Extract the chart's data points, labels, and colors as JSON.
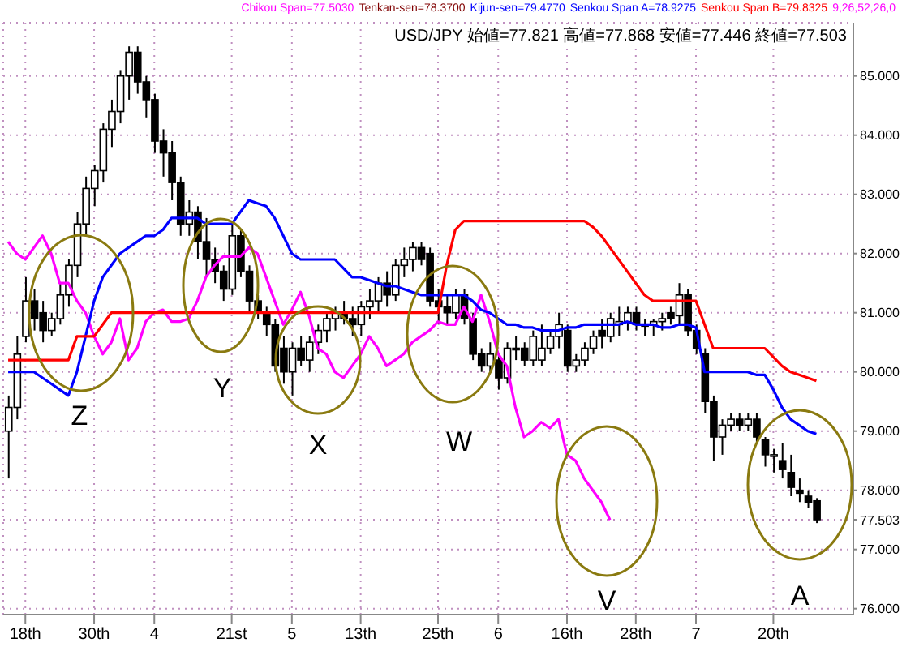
{
  "chart_data": {
    "type": "candlestick",
    "categories": [
      null,
      null,
      "18th",
      null,
      null,
      null,
      null,
      null,
      null,
      null,
      "30th",
      null,
      null,
      null,
      null,
      null,
      null,
      "4",
      null,
      null,
      null,
      null,
      null,
      null,
      null,
      null,
      "21st",
      null,
      null,
      null,
      null,
      null,
      null,
      "5",
      null,
      null,
      null,
      null,
      null,
      null,
      null,
      "13th",
      null,
      null,
      null,
      null,
      null,
      null,
      null,
      null,
      "25th",
      null,
      null,
      null,
      null,
      null,
      null,
      "6",
      null,
      null,
      null,
      null,
      null,
      null,
      null,
      "16th",
      null,
      null,
      null,
      null,
      null,
      null,
      null,
      "28th",
      null,
      null,
      null,
      null,
      null,
      null,
      "7",
      null,
      null,
      null,
      null,
      null,
      null,
      null,
      null,
      "20th",
      null,
      null,
      null,
      null,
      null
    ],
    "ohlc": [
      [
        79.0,
        79.6,
        78.2,
        79.4
      ],
      [
        79.4,
        80.6,
        79.2,
        80.3
      ],
      [
        80.6,
        81.6,
        80.5,
        81.2
      ],
      [
        81.2,
        81.4,
        80.7,
        80.9
      ],
      [
        81.0,
        81.2,
        80.5,
        80.7
      ],
      [
        80.7,
        81.0,
        80.6,
        80.9
      ],
      [
        80.9,
        81.5,
        80.8,
        81.3
      ],
      [
        81.3,
        81.9,
        81.1,
        81.8
      ],
      [
        81.8,
        82.7,
        81.6,
        82.5
      ],
      [
        82.5,
        83.3,
        82.3,
        83.1
      ],
      [
        83.1,
        83.5,
        82.8,
        83.4
      ],
      [
        83.4,
        84.2,
        83.2,
        84.1
      ],
      [
        84.1,
        84.6,
        83.8,
        84.4
      ],
      [
        84.4,
        85.1,
        84.2,
        85.0
      ],
      [
        85.0,
        85.5,
        84.6,
        85.4
      ],
      [
        85.4,
        85.5,
        84.7,
        84.9
      ],
      [
        84.9,
        85.0,
        84.3,
        84.6
      ],
      [
        84.6,
        84.7,
        83.7,
        83.9
      ],
      [
        83.9,
        84.1,
        83.3,
        83.7
      ],
      [
        83.7,
        83.9,
        82.9,
        83.2
      ],
      [
        83.2,
        83.3,
        82.3,
        82.5
      ],
      [
        82.5,
        82.9,
        82.3,
        82.7
      ],
      [
        82.7,
        82.8,
        81.9,
        82.2
      ],
      [
        82.2,
        82.6,
        81.6,
        81.9
      ],
      [
        81.9,
        82.1,
        81.5,
        81.7
      ],
      [
        81.7,
        81.8,
        81.2,
        81.4
      ],
      [
        81.4,
        82.5,
        81.3,
        82.3
      ],
      [
        82.3,
        82.4,
        81.6,
        81.7
      ],
      [
        81.7,
        81.8,
        81.0,
        81.2
      ],
      [
        81.2,
        81.3,
        80.9,
        81.0
      ],
      [
        81.0,
        81.1,
        80.6,
        80.8
      ],
      [
        80.8,
        80.9,
        80.0,
        80.1
      ],
      [
        80.4,
        80.6,
        79.8,
        80.0
      ],
      [
        80.0,
        80.5,
        79.6,
        80.4
      ],
      [
        80.4,
        80.6,
        80.1,
        80.2
      ],
      [
        80.2,
        80.6,
        80.0,
        80.5
      ],
      [
        80.5,
        80.8,
        80.3,
        80.7
      ],
      [
        80.7,
        81.0,
        80.5,
        80.9
      ],
      [
        80.9,
        81.1,
        80.7,
        81.0
      ],
      [
        81.0,
        81.2,
        80.8,
        80.9
      ],
      [
        80.9,
        81.1,
        80.6,
        80.8
      ],
      [
        80.8,
        81.2,
        80.6,
        81.1
      ],
      [
        81.1,
        81.4,
        80.9,
        81.2
      ],
      [
        81.2,
        81.6,
        81.0,
        81.5
      ],
      [
        81.5,
        81.7,
        81.1,
        81.3
      ],
      [
        81.3,
        81.9,
        81.2,
        81.8
      ],
      [
        81.8,
        82.1,
        81.6,
        81.9
      ],
      [
        81.9,
        82.2,
        81.7,
        82.1
      ],
      [
        82.1,
        82.2,
        81.8,
        81.9
      ],
      [
        82.0,
        82.1,
        81.1,
        81.2
      ],
      [
        81.2,
        81.4,
        80.8,
        81.1
      ],
      [
        81.1,
        81.3,
        80.8,
        81.0
      ],
      [
        81.0,
        81.4,
        80.9,
        81.3
      ],
      [
        81.3,
        81.4,
        80.8,
        80.9
      ],
      [
        80.9,
        81.0,
        80.2,
        80.3
      ],
      [
        80.3,
        80.4,
        80.0,
        80.1
      ],
      [
        80.1,
        80.5,
        80.0,
        80.3
      ],
      [
        80.2,
        80.3,
        79.7,
        79.9
      ],
      [
        79.9,
        80.5,
        79.8,
        80.4
      ],
      [
        80.4,
        80.6,
        80.2,
        80.4
      ],
      [
        80.4,
        80.5,
        80.1,
        80.2
      ],
      [
        80.2,
        80.7,
        80.1,
        80.6
      ],
      [
        80.2,
        80.8,
        80.1,
        80.4
      ],
      [
        80.4,
        80.7,
        80.3,
        80.6
      ],
      [
        80.6,
        81.0,
        80.4,
        80.8
      ],
      [
        80.7,
        80.8,
        80.0,
        80.1
      ],
      [
        80.1,
        80.3,
        80.0,
        80.2
      ],
      [
        80.2,
        80.5,
        80.1,
        80.4
      ],
      [
        80.4,
        80.7,
        80.3,
        80.6
      ],
      [
        80.7,
        80.9,
        80.4,
        80.6
      ],
      [
        80.6,
        81.0,
        80.5,
        80.9
      ],
      [
        80.8,
        81.1,
        80.6,
        80.85
      ],
      [
        80.85,
        81.1,
        80.7,
        81.0
      ],
      [
        81.0,
        81.1,
        80.7,
        80.8
      ],
      [
        80.8,
        80.9,
        80.6,
        80.8
      ],
      [
        80.8,
        80.9,
        80.6,
        80.85
      ],
      [
        80.85,
        81.0,
        80.7,
        80.9
      ],
      [
        81.0,
        81.1,
        80.8,
        80.9
      ],
      [
        80.95,
        81.5,
        80.8,
        81.3
      ],
      [
        81.3,
        81.4,
        80.6,
        80.7
      ],
      [
        80.7,
        80.8,
        80.3,
        80.4
      ],
      [
        80.3,
        80.4,
        79.3,
        79.5
      ],
      [
        79.5,
        79.6,
        78.5,
        78.9
      ],
      [
        78.9,
        79.2,
        78.6,
        79.1
      ],
      [
        79.1,
        79.3,
        79.0,
        79.2
      ],
      [
        79.2,
        79.3,
        79.0,
        79.1
      ],
      [
        79.1,
        79.3,
        79.0,
        79.2
      ],
      [
        79.2,
        79.3,
        78.8,
        78.9
      ],
      [
        78.85,
        78.9,
        78.4,
        78.6
      ],
      [
        78.6,
        78.7,
        78.3,
        78.6
      ],
      [
        78.5,
        78.8,
        78.2,
        78.35
      ],
      [
        78.3,
        78.6,
        77.9,
        78.05
      ],
      [
        78.0,
        78.2,
        77.8,
        77.95
      ],
      [
        77.9,
        78.0,
        77.7,
        77.8
      ],
      [
        77.821,
        77.868,
        77.446,
        77.503
      ]
    ],
    "series": [
      {
        "type": "line",
        "name": "Chikou Span=77.5030",
        "color": "#ff00ff",
        "values": [
          82.2,
          82.0,
          81.9,
          82.1,
          82.3,
          82.0,
          81.5,
          81.5,
          81.2,
          81.0,
          80.6,
          80.3,
          80.5,
          80.9,
          80.2,
          80.4,
          80.85,
          81.0,
          81.05,
          80.85,
          80.85,
          80.9,
          81.2,
          81.6,
          81.8,
          81.95,
          81.95,
          81.95,
          82.1,
          82.0,
          81.6,
          81.2,
          80.8,
          81.05,
          81.35,
          80.95,
          80.4,
          80.3,
          80.0,
          79.9,
          80.1,
          80.3,
          80.6,
          80.4,
          80.1,
          80.2,
          80.3,
          80.5,
          80.6,
          80.7,
          80.85,
          80.8,
          80.8,
          81.1,
          80.85,
          81.3,
          80.85,
          80.3,
          80.1,
          79.4,
          78.9,
          79.0,
          79.15,
          79.05,
          79.2,
          78.6,
          78.5,
          78.2,
          78.0,
          77.8,
          77.5,
          null,
          null,
          null,
          null,
          null,
          null,
          null,
          null,
          null,
          null,
          null,
          null,
          null,
          null,
          null,
          null,
          null,
          null,
          null,
          null,
          null,
          null,
          null,
          null
        ]
      },
      {
        "type": "line",
        "name": "Senkou Span A=78.9275",
        "color": "#0000ff",
        "values": [
          80.0,
          80.0,
          80.0,
          80.0,
          79.9,
          79.8,
          79.7,
          79.6,
          80.0,
          80.6,
          81.2,
          81.6,
          81.8,
          82.0,
          82.1,
          82.2,
          82.3,
          82.3,
          82.4,
          82.6,
          82.6,
          82.6,
          82.6,
          82.5,
          82.5,
          82.5,
          82.5,
          82.7,
          82.9,
          82.85,
          82.8,
          82.6,
          82.3,
          82.0,
          81.9,
          81.9,
          81.9,
          81.9,
          81.9,
          81.75,
          81.6,
          81.6,
          81.55,
          81.5,
          81.45,
          81.45,
          81.4,
          81.35,
          81.3,
          81.3,
          81.3,
          81.3,
          81.3,
          81.3,
          81.2,
          81.05,
          81.0,
          80.9,
          80.8,
          80.8,
          80.75,
          80.75,
          80.7,
          80.7,
          80.7,
          80.75,
          80.75,
          80.8,
          80.8,
          80.8,
          80.8,
          80.8,
          80.85,
          80.8,
          80.8,
          80.8,
          80.75,
          80.75,
          80.8,
          80.8,
          80.75,
          80.0,
          80.0,
          80.0,
          80.0,
          80.0,
          80.0,
          79.95,
          79.95,
          79.7,
          79.4,
          79.2,
          79.1,
          79.0,
          78.95
        ]
      },
      {
        "type": "line",
        "name": "Senkou Span B=79.8325",
        "color": "#ff0000",
        "values": [
          80.2,
          80.2,
          80.2,
          80.2,
          80.2,
          80.2,
          80.2,
          80.2,
          80.6,
          80.6,
          80.6,
          80.8,
          81.0,
          81.0,
          81.0,
          81.0,
          81.0,
          81.0,
          81.0,
          81.0,
          81.0,
          81.0,
          81.0,
          81.0,
          81.0,
          81.0,
          81.0,
          81.0,
          81.0,
          81.0,
          81.0,
          81.0,
          81.0,
          81.0,
          81.0,
          81.0,
          81.0,
          81.0,
          81.0,
          81.0,
          81.0,
          81.0,
          81.0,
          81.0,
          81.0,
          81.0,
          81.0,
          81.0,
          81.0,
          81.0,
          81.0,
          81.8,
          82.4,
          82.55,
          82.55,
          82.55,
          82.55,
          82.55,
          82.55,
          82.55,
          82.55,
          82.55,
          82.55,
          82.55,
          82.55,
          82.55,
          82.55,
          82.55,
          82.45,
          82.3,
          82.1,
          81.9,
          81.7,
          81.5,
          81.3,
          81.2,
          81.2,
          81.2,
          81.2,
          81.2,
          81.2,
          80.8,
          80.4,
          80.4,
          80.4,
          80.4,
          80.4,
          80.4,
          80.4,
          80.25,
          80.1,
          80.0,
          79.95,
          79.9,
          79.85
        ]
      }
    ],
    "annotations": [
      "Tenkan-sen=78.3700",
      "Kijun-sen=79.4770",
      "9,26,52,26,0",
      "USD/JPY 始値=77.821 高値=77.868 安値=77.446 終値=77.503",
      "Z",
      "Y",
      "X",
      "W",
      "V",
      "A"
    ],
    "ylim": [
      75.9,
      85.9
    ],
    "yticks": [
      {
        "value": 76,
        "label": "76.000"
      },
      {
        "value": 77,
        "label": "77.000"
      },
      {
        "value": 77.503,
        "label": "77.503"
      },
      {
        "value": 78,
        "label": "78.000"
      },
      {
        "value": 79,
        "label": "79.000"
      },
      {
        "value": 80,
        "label": "80.000"
      },
      {
        "value": 81,
        "label": "81.000"
      },
      {
        "value": 82,
        "label": "82.000"
      },
      {
        "value": 83,
        "label": "83.000"
      },
      {
        "value": 84,
        "label": "84.000"
      },
      {
        "value": 85,
        "label": "85.000"
      }
    ],
    "grid": true,
    "legend": "top"
  }
}
